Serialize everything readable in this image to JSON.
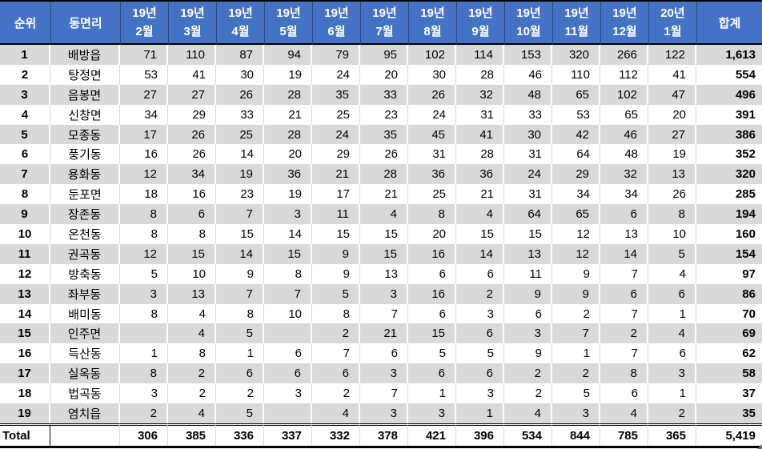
{
  "colors": {
    "header_bg": "#4472C4",
    "header_text": "#FFFFFF",
    "stripe_gray": "#D9D9D9",
    "text": "#000000"
  },
  "table": {
    "rank_header": "순위",
    "district_header": "동면리",
    "total_header": "합계",
    "month_headers": [
      {
        "year": "19년",
        "month": "2월"
      },
      {
        "year": "19년",
        "month": "3월"
      },
      {
        "year": "19년",
        "month": "4월"
      },
      {
        "year": "19년",
        "month": "5월"
      },
      {
        "year": "19년",
        "month": "6월"
      },
      {
        "year": "19년",
        "month": "7월"
      },
      {
        "year": "19년",
        "month": "8월"
      },
      {
        "year": "19년",
        "month": "9월"
      },
      {
        "year": "19년",
        "month": "10월"
      },
      {
        "year": "19년",
        "month": "11월"
      },
      {
        "year": "19년",
        "month": "12월"
      },
      {
        "year": "20년",
        "month": "1월"
      }
    ],
    "rows": [
      {
        "rank": "1",
        "district": "배방읍",
        "values": [
          "71",
          "110",
          "87",
          "94",
          "79",
          "95",
          "102",
          "114",
          "153",
          "320",
          "266",
          "122"
        ],
        "total": "1,613"
      },
      {
        "rank": "2",
        "district": "탕정면",
        "values": [
          "53",
          "41",
          "30",
          "19",
          "24",
          "20",
          "30",
          "28",
          "46",
          "110",
          "112",
          "41"
        ],
        "total": "554"
      },
      {
        "rank": "3",
        "district": "음봉면",
        "values": [
          "27",
          "27",
          "26",
          "28",
          "35",
          "33",
          "26",
          "32",
          "48",
          "65",
          "102",
          "47"
        ],
        "total": "496"
      },
      {
        "rank": "4",
        "district": "신창면",
        "values": [
          "34",
          "29",
          "33",
          "21",
          "25",
          "23",
          "24",
          "31",
          "33",
          "53",
          "65",
          "20"
        ],
        "total": "391"
      },
      {
        "rank": "5",
        "district": "모종동",
        "values": [
          "17",
          "26",
          "25",
          "28",
          "24",
          "35",
          "45",
          "41",
          "30",
          "42",
          "46",
          "27"
        ],
        "total": "386"
      },
      {
        "rank": "6",
        "district": "풍기동",
        "values": [
          "16",
          "26",
          "14",
          "20",
          "29",
          "26",
          "31",
          "28",
          "31",
          "64",
          "48",
          "19"
        ],
        "total": "352"
      },
      {
        "rank": "7",
        "district": "용화동",
        "values": [
          "12",
          "34",
          "19",
          "36",
          "21",
          "28",
          "36",
          "36",
          "24",
          "29",
          "32",
          "13"
        ],
        "total": "320"
      },
      {
        "rank": "8",
        "district": "둔포면",
        "values": [
          "18",
          "16",
          "23",
          "19",
          "17",
          "21",
          "25",
          "21",
          "31",
          "34",
          "34",
          "26"
        ],
        "total": "285"
      },
      {
        "rank": "9",
        "district": "장존동",
        "values": [
          "8",
          "6",
          "7",
          "3",
          "11",
          "4",
          "8",
          "4",
          "64",
          "65",
          "6",
          "8"
        ],
        "total": "194"
      },
      {
        "rank": "10",
        "district": "온천동",
        "values": [
          "8",
          "8",
          "15",
          "14",
          "15",
          "15",
          "20",
          "15",
          "15",
          "12",
          "13",
          "10"
        ],
        "total": "160"
      },
      {
        "rank": "11",
        "district": "권곡동",
        "values": [
          "12",
          "15",
          "14",
          "15",
          "9",
          "15",
          "16",
          "14",
          "13",
          "12",
          "14",
          "5"
        ],
        "total": "154"
      },
      {
        "rank": "12",
        "district": "방축동",
        "values": [
          "5",
          "10",
          "9",
          "8",
          "9",
          "13",
          "6",
          "6",
          "11",
          "9",
          "7",
          "4"
        ],
        "total": "97"
      },
      {
        "rank": "13",
        "district": "좌부동",
        "values": [
          "3",
          "13",
          "7",
          "7",
          "5",
          "3",
          "16",
          "2",
          "9",
          "9",
          "6",
          "6"
        ],
        "total": "86"
      },
      {
        "rank": "14",
        "district": "배미동",
        "values": [
          "8",
          "4",
          "8",
          "10",
          "8",
          "7",
          "6",
          "3",
          "6",
          "2",
          "7",
          "1"
        ],
        "total": "70"
      },
      {
        "rank": "15",
        "district": "인주면",
        "values": [
          "",
          "4",
          "5",
          "",
          "2",
          "21",
          "15",
          "6",
          "3",
          "7",
          "2",
          "4"
        ],
        "total": "69"
      },
      {
        "rank": "16",
        "district": "득산동",
        "values": [
          "1",
          "8",
          "1",
          "6",
          "7",
          "6",
          "5",
          "5",
          "9",
          "1",
          "7",
          "6"
        ],
        "total": "62"
      },
      {
        "rank": "17",
        "district": "실옥동",
        "values": [
          "8",
          "2",
          "6",
          "6",
          "6",
          "3",
          "6",
          "6",
          "2",
          "2",
          "8",
          "3"
        ],
        "total": "58"
      },
      {
        "rank": "18",
        "district": "법곡동",
        "values": [
          "3",
          "2",
          "2",
          "3",
          "2",
          "7",
          "1",
          "3",
          "2",
          "5",
          "6",
          "1"
        ],
        "total": "37"
      },
      {
        "rank": "19",
        "district": "염치읍",
        "values": [
          "2",
          "4",
          "5",
          "",
          "4",
          "3",
          "3",
          "1",
          "4",
          "3",
          "4",
          "2"
        ],
        "total": "35"
      }
    ],
    "total_row": {
      "label": "Total",
      "district": "",
      "values": [
        "306",
        "385",
        "336",
        "337",
        "332",
        "378",
        "421",
        "396",
        "534",
        "844",
        "785",
        "365"
      ],
      "total": "5,419"
    }
  }
}
